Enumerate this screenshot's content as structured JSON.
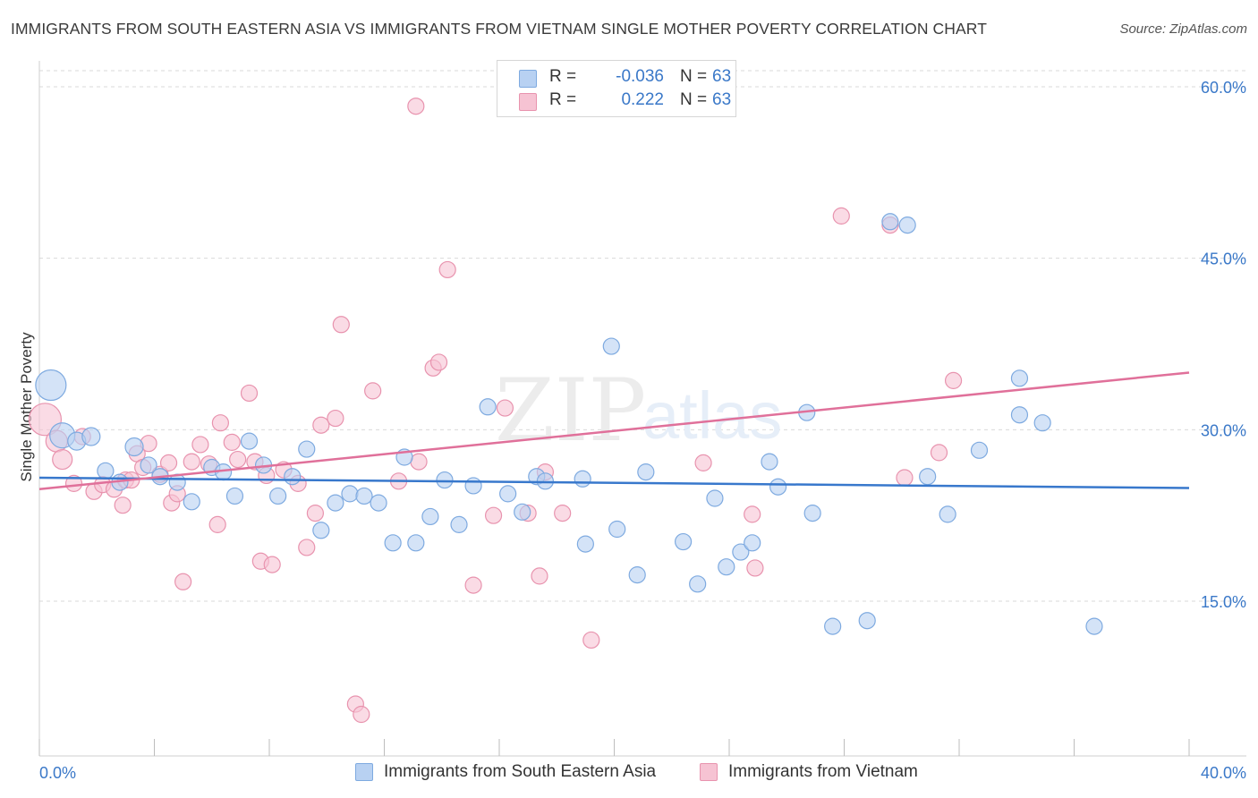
{
  "header": {
    "title": "IMMIGRANTS FROM SOUTH EASTERN ASIA VS IMMIGRANTS FROM VIETNAM SINGLE MOTHER POVERTY CORRELATION CHART",
    "source": "Source: ZipAtlas.com"
  },
  "watermark": {
    "text_zip": "ZIP",
    "text_atlas": "atlas"
  },
  "legend_top": {
    "rows": [
      {
        "r_label": "R =",
        "r_value": "-0.036",
        "n_label": "N =",
        "n_value": "63"
      },
      {
        "r_label": "R =",
        "r_value": "0.222",
        "n_label": "N =",
        "n_value": "63"
      }
    ]
  },
  "legend_bottom": {
    "items": [
      {
        "label": "Immigrants from South Eastern Asia"
      },
      {
        "label": "Immigrants from Vietnam"
      }
    ]
  },
  "colors": {
    "blue_fill": "#b8d1f2",
    "blue_stroke": "#7eaae0",
    "blue_line": "#3878cc",
    "pink_fill": "#f6c3d3",
    "pink_stroke": "#e893ae",
    "pink_line": "#e0709a",
    "tick_text": "#3a78c8",
    "grid": "#d9d9d9"
  },
  "chart_data": {
    "type": "scatter",
    "title": "IMMIGRANTS FROM SOUTH EASTERN ASIA VS IMMIGRANTS FROM VIETNAM SINGLE MOTHER POVERTY CORRELATION CHART",
    "xlabel": "",
    "ylabel": "Single Mother Poverty",
    "xlim": [
      0,
      40
    ],
    "ylim": [
      0,
      62
    ],
    "x_tick_labels": [
      "0.0%",
      "40.0%"
    ],
    "y_ticks": [
      15,
      30,
      45,
      60
    ],
    "y_tick_labels": [
      "15.0%",
      "30.0%",
      "45.0%",
      "60.0%"
    ],
    "grid": "horizontal dashed",
    "legend_position": "top-center",
    "series": [
      {
        "name": "Immigrants from South Eastern Asia",
        "color": "#b8d1f2",
        "trend": {
          "x": [
            0,
            40
          ],
          "y": [
            25.8,
            24.9
          ]
        },
        "points": [
          {
            "x": 0.4,
            "y": 33.9,
            "s": 17
          },
          {
            "x": 0.8,
            "y": 29.5,
            "s": 14
          },
          {
            "x": 1.3,
            "y": 29.0,
            "s": 10
          },
          {
            "x": 1.8,
            "y": 29.4,
            "s": 10
          },
          {
            "x": 2.3,
            "y": 26.4,
            "s": 9
          },
          {
            "x": 2.8,
            "y": 25.4,
            "s": 9
          },
          {
            "x": 3.3,
            "y": 28.5,
            "s": 10
          },
          {
            "x": 3.8,
            "y": 26.9,
            "s": 9
          },
          {
            "x": 4.2,
            "y": 25.9,
            "s": 9
          },
          {
            "x": 4.8,
            "y": 25.4,
            "s": 9
          },
          {
            "x": 5.3,
            "y": 23.7,
            "s": 9
          },
          {
            "x": 6.0,
            "y": 26.7,
            "s": 9
          },
          {
            "x": 6.4,
            "y": 26.3,
            "s": 9
          },
          {
            "x": 6.8,
            "y": 24.2,
            "s": 9
          },
          {
            "x": 7.3,
            "y": 29.0,
            "s": 9
          },
          {
            "x": 7.8,
            "y": 26.9,
            "s": 9
          },
          {
            "x": 8.3,
            "y": 24.2,
            "s": 9
          },
          {
            "x": 8.8,
            "y": 25.9,
            "s": 9
          },
          {
            "x": 9.3,
            "y": 28.3,
            "s": 9
          },
          {
            "x": 9.8,
            "y": 21.2,
            "s": 9
          },
          {
            "x": 10.3,
            "y": 23.6,
            "s": 9
          },
          {
            "x": 10.8,
            "y": 24.4,
            "s": 9
          },
          {
            "x": 11.3,
            "y": 24.2,
            "s": 9
          },
          {
            "x": 11.8,
            "y": 23.6,
            "s": 9
          },
          {
            "x": 12.3,
            "y": 20.1,
            "s": 9
          },
          {
            "x": 12.7,
            "y": 27.6,
            "s": 9
          },
          {
            "x": 13.1,
            "y": 20.1,
            "s": 9
          },
          {
            "x": 13.6,
            "y": 22.4,
            "s": 9
          },
          {
            "x": 14.1,
            "y": 25.6,
            "s": 9
          },
          {
            "x": 14.6,
            "y": 21.7,
            "s": 9
          },
          {
            "x": 15.1,
            "y": 25.1,
            "s": 9
          },
          {
            "x": 15.6,
            "y": 32.0,
            "s": 9
          },
          {
            "x": 16.3,
            "y": 24.4,
            "s": 9
          },
          {
            "x": 16.8,
            "y": 22.8,
            "s": 9
          },
          {
            "x": 17.3,
            "y": 25.9,
            "s": 9
          },
          {
            "x": 17.6,
            "y": 25.5,
            "s": 9
          },
          {
            "x": 18.9,
            "y": 25.7,
            "s": 9
          },
          {
            "x": 19.0,
            "y": 20.0,
            "s": 9
          },
          {
            "x": 19.9,
            "y": 37.3,
            "s": 9
          },
          {
            "x": 20.1,
            "y": 21.3,
            "s": 9
          },
          {
            "x": 20.8,
            "y": 17.3,
            "s": 9
          },
          {
            "x": 21.1,
            "y": 26.3,
            "s": 9
          },
          {
            "x": 22.4,
            "y": 20.2,
            "s": 9
          },
          {
            "x": 22.9,
            "y": 16.5,
            "s": 9
          },
          {
            "x": 23.5,
            "y": 24.0,
            "s": 9
          },
          {
            "x": 23.9,
            "y": 18.0,
            "s": 9
          },
          {
            "x": 24.4,
            "y": 19.3,
            "s": 9
          },
          {
            "x": 24.8,
            "y": 20.1,
            "s": 9
          },
          {
            "x": 25.4,
            "y": 27.2,
            "s": 9
          },
          {
            "x": 25.7,
            "y": 25.0,
            "s": 9
          },
          {
            "x": 26.7,
            "y": 31.5,
            "s": 9
          },
          {
            "x": 26.9,
            "y": 22.7,
            "s": 9
          },
          {
            "x": 27.6,
            "y": 12.8,
            "s": 9
          },
          {
            "x": 28.8,
            "y": 13.3,
            "s": 9
          },
          {
            "x": 29.6,
            "y": 48.2,
            "s": 9
          },
          {
            "x": 30.2,
            "y": 47.9,
            "s": 9
          },
          {
            "x": 30.9,
            "y": 25.9,
            "s": 9
          },
          {
            "x": 31.6,
            "y": 22.6,
            "s": 9
          },
          {
            "x": 32.7,
            "y": 28.2,
            "s": 9
          },
          {
            "x": 34.1,
            "y": 31.3,
            "s": 9
          },
          {
            "x": 34.1,
            "y": 34.5,
            "s": 9
          },
          {
            "x": 34.9,
            "y": 30.6,
            "s": 9
          },
          {
            "x": 36.7,
            "y": 12.8,
            "s": 9
          }
        ]
      },
      {
        "name": "Immigrants from Vietnam",
        "color": "#f6c3d3",
        "trend": {
          "x": [
            0,
            40
          ],
          "y": [
            24.8,
            35.0
          ]
        },
        "points": [
          {
            "x": 0.2,
            "y": 30.9,
            "s": 18
          },
          {
            "x": 0.6,
            "y": 29.0,
            "s": 12
          },
          {
            "x": 0.8,
            "y": 27.4,
            "s": 11
          },
          {
            "x": 1.2,
            "y": 25.3,
            "s": 9
          },
          {
            "x": 1.5,
            "y": 29.4,
            "s": 9
          },
          {
            "x": 1.9,
            "y": 24.6,
            "s": 9
          },
          {
            "x": 2.2,
            "y": 25.2,
            "s": 9
          },
          {
            "x": 2.6,
            "y": 24.8,
            "s": 9
          },
          {
            "x": 2.9,
            "y": 23.4,
            "s": 9
          },
          {
            "x": 3.0,
            "y": 25.6,
            "s": 9
          },
          {
            "x": 3.2,
            "y": 25.6,
            "s": 9
          },
          {
            "x": 3.4,
            "y": 27.9,
            "s": 9
          },
          {
            "x": 3.6,
            "y": 26.7,
            "s": 9
          },
          {
            "x": 3.8,
            "y": 28.8,
            "s": 9
          },
          {
            "x": 4.2,
            "y": 26.1,
            "s": 9
          },
          {
            "x": 4.5,
            "y": 27.1,
            "s": 9
          },
          {
            "x": 4.6,
            "y": 23.6,
            "s": 9
          },
          {
            "x": 4.8,
            "y": 24.4,
            "s": 9
          },
          {
            "x": 5.0,
            "y": 16.7,
            "s": 9
          },
          {
            "x": 5.3,
            "y": 27.2,
            "s": 9
          },
          {
            "x": 5.6,
            "y": 28.7,
            "s": 9
          },
          {
            "x": 5.9,
            "y": 27.0,
            "s": 9
          },
          {
            "x": 6.2,
            "y": 21.7,
            "s": 9
          },
          {
            "x": 6.3,
            "y": 30.6,
            "s": 9
          },
          {
            "x": 6.7,
            "y": 28.9,
            "s": 9
          },
          {
            "x": 6.9,
            "y": 27.4,
            "s": 9
          },
          {
            "x": 7.3,
            "y": 33.2,
            "s": 9
          },
          {
            "x": 7.5,
            "y": 27.2,
            "s": 9
          },
          {
            "x": 7.7,
            "y": 18.5,
            "s": 9
          },
          {
            "x": 7.9,
            "y": 26.0,
            "s": 9
          },
          {
            "x": 8.1,
            "y": 18.2,
            "s": 9
          },
          {
            "x": 8.5,
            "y": 26.5,
            "s": 9
          },
          {
            "x": 9.0,
            "y": 25.3,
            "s": 9
          },
          {
            "x": 9.3,
            "y": 19.7,
            "s": 9
          },
          {
            "x": 9.6,
            "y": 22.7,
            "s": 9
          },
          {
            "x": 9.8,
            "y": 30.4,
            "s": 9
          },
          {
            "x": 10.3,
            "y": 31.0,
            "s": 9
          },
          {
            "x": 10.5,
            "y": 39.2,
            "s": 9
          },
          {
            "x": 11.0,
            "y": 6.0,
            "s": 9
          },
          {
            "x": 11.2,
            "y": 5.1,
            "s": 9
          },
          {
            "x": 11.6,
            "y": 33.4,
            "s": 9
          },
          {
            "x": 12.5,
            "y": 25.5,
            "s": 9
          },
          {
            "x": 13.1,
            "y": 58.3,
            "s": 9
          },
          {
            "x": 13.2,
            "y": 27.2,
            "s": 9
          },
          {
            "x": 13.7,
            "y": 35.4,
            "s": 9
          },
          {
            "x": 13.9,
            "y": 35.9,
            "s": 9
          },
          {
            "x": 14.2,
            "y": 44.0,
            "s": 9
          },
          {
            "x": 15.1,
            "y": 16.4,
            "s": 9
          },
          {
            "x": 15.8,
            "y": 22.5,
            "s": 9
          },
          {
            "x": 16.2,
            "y": 31.9,
            "s": 9
          },
          {
            "x": 17.0,
            "y": 22.7,
            "s": 9
          },
          {
            "x": 17.4,
            "y": 17.2,
            "s": 9
          },
          {
            "x": 17.6,
            "y": 26.3,
            "s": 9
          },
          {
            "x": 18.2,
            "y": 22.7,
            "s": 9
          },
          {
            "x": 19.2,
            "y": 11.6,
            "s": 9
          },
          {
            "x": 23.1,
            "y": 27.1,
            "s": 9
          },
          {
            "x": 24.9,
            "y": 17.9,
            "s": 9
          },
          {
            "x": 24.8,
            "y": 22.6,
            "s": 9
          },
          {
            "x": 29.6,
            "y": 47.9,
            "s": 9
          },
          {
            "x": 27.9,
            "y": 48.7,
            "s": 9
          },
          {
            "x": 30.1,
            "y": 25.8,
            "s": 9
          },
          {
            "x": 31.3,
            "y": 28.0,
            "s": 9
          },
          {
            "x": 31.8,
            "y": 34.3,
            "s": 9
          }
        ]
      }
    ]
  }
}
